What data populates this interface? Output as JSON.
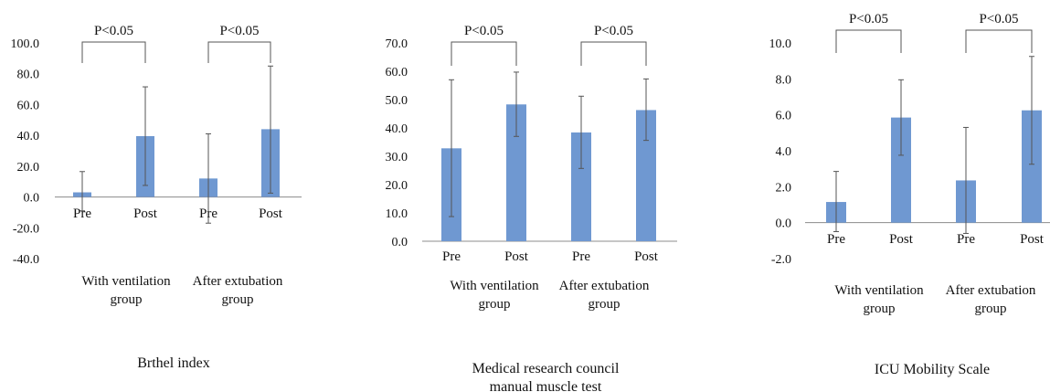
{
  "chart_data": [
    {
      "type": "bar",
      "title": "Brthel index",
      "categories": [
        "Pre",
        "Post",
        "Pre",
        "Post"
      ],
      "groups": [
        "With ventilation group",
        "After extubation group"
      ],
      "values": [
        3.0,
        39.5,
        12.0,
        44.0
      ],
      "error_low": [
        -9.0,
        7.5,
        -17.0,
        2.5
      ],
      "error_high": [
        16.5,
        71.5,
        41.0,
        85.0
      ],
      "ylim": [
        -40,
        100
      ],
      "yticks": [
        "100.0",
        "80.0",
        "60.0",
        "40.0",
        "20.0",
        "0.0",
        "-20.0",
        "-40.0"
      ],
      "annotations": [
        "P<0.05",
        "P<0.05"
      ],
      "grid": false,
      "bar_color": "#6F98D1"
    },
    {
      "type": "bar",
      "title": "Medical research council manual muscle test",
      "categories": [
        "Pre",
        "Post",
        "Pre",
        "Post"
      ],
      "groups": [
        "With ventilation group",
        "After extubation group"
      ],
      "values": [
        32.8,
        48.3,
        38.4,
        46.3
      ],
      "error_low": [
        8.7,
        37.0,
        25.7,
        35.6
      ],
      "error_high": [
        57.0,
        59.7,
        51.2,
        57.3
      ],
      "ylim": [
        0,
        70
      ],
      "yticks": [
        "70.0",
        "60.0",
        "50.0",
        "40.0",
        "30.0",
        "20.0",
        "10.0",
        "0.0"
      ],
      "annotations": [
        "P<0.05",
        "P<0.05"
      ],
      "grid": false,
      "bar_color": "#6F98D1"
    },
    {
      "type": "bar",
      "title": "ICU Mobility Scale",
      "categories": [
        "Pre",
        "Post",
        "Pre",
        "Post"
      ],
      "groups": [
        "With ventilation group",
        "After extubation group"
      ],
      "values": [
        1.15,
        5.85,
        2.35,
        6.25
      ],
      "error_low": [
        -0.5,
        3.75,
        -0.6,
        3.25
      ],
      "error_high": [
        2.85,
        7.95,
        5.3,
        9.25
      ],
      "ylim": [
        -2,
        10
      ],
      "yticks": [
        "10.0",
        "8.0",
        "6.0",
        "4.0",
        "2.0",
        "0.0",
        "-2.0"
      ],
      "annotations": [
        "P<0.05",
        "P<0.05"
      ],
      "grid": false,
      "bar_color": "#6F98D1"
    }
  ]
}
